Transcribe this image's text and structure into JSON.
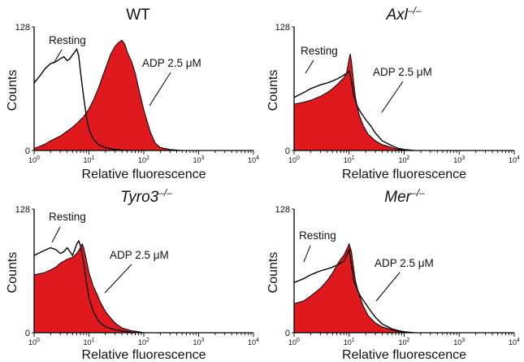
{
  "chart_data": [
    {
      "type": "area",
      "title": "WT",
      "title_italic": false,
      "xlabel": "Relative fluorescence",
      "ylabel": "Counts",
      "x_scale": "log",
      "xlim": [
        1,
        10000
      ],
      "ylim": [
        0,
        128
      ],
      "x_ticks": [
        {
          "value": 1,
          "label": "10",
          "exp": "0"
        },
        {
          "value": 10,
          "label": "10",
          "exp": "1"
        },
        {
          "value": 100,
          "label": "10",
          "exp": "2"
        },
        {
          "value": 1000,
          "label": "10",
          "exp": "3"
        },
        {
          "value": 10000,
          "label": "10",
          "exp": "4"
        }
      ],
      "y_ticks": [
        {
          "value": 0,
          "label": "0"
        },
        {
          "value": 128,
          "label": "128"
        }
      ],
      "annotations": [
        {
          "text": "Resting",
          "series": "Resting"
        },
        {
          "text": "ADP 2.5 μM",
          "series": "ADP 2.5 μM"
        }
      ],
      "series": [
        {
          "name": "Resting",
          "style": "line",
          "color": "#000000",
          "x": [
            1,
            1.3,
            1.6,
            2,
            2.5,
            3,
            3.5,
            4,
            4.5,
            5,
            5.5,
            6,
            6.5,
            7,
            8,
            9,
            10,
            12,
            15,
            20,
            30,
            50
          ],
          "y": [
            70,
            78,
            85,
            90,
            92,
            95,
            97,
            93,
            95,
            99,
            102,
            105,
            98,
            82,
            55,
            35,
            22,
            12,
            6,
            3,
            1,
            0
          ]
        },
        {
          "name": "ADP 2.5 μM",
          "style": "fill",
          "color": "#e0191f",
          "x": [
            1,
            1.5,
            2,
            3,
            4,
            5,
            6,
            8,
            10,
            12,
            15,
            20,
            25,
            30,
            35,
            40,
            45,
            50,
            60,
            70,
            80,
            100,
            130,
            160,
            200,
            300,
            500
          ],
          "y": [
            2,
            6,
            10,
            15,
            20,
            24,
            28,
            35,
            43,
            52,
            65,
            85,
            100,
            108,
            112,
            114,
            110,
            102,
            92,
            80,
            65,
            42,
            20,
            8,
            3,
            1,
            0
          ]
        }
      ]
    },
    {
      "type": "area",
      "title": "Axl",
      "title_superscript": "–/–",
      "title_italic": true,
      "xlabel": "Relative fluorescence",
      "ylabel": "Counts",
      "x_scale": "log",
      "xlim": [
        1,
        10000
      ],
      "ylim": [
        0,
        128
      ],
      "x_ticks": [
        {
          "value": 1,
          "label": "10",
          "exp": "0"
        },
        {
          "value": 10,
          "label": "10",
          "exp": "1"
        },
        {
          "value": 100,
          "label": "10",
          "exp": "2"
        },
        {
          "value": 1000,
          "label": "10",
          "exp": "3"
        },
        {
          "value": 10000,
          "label": "10",
          "exp": "4"
        }
      ],
      "y_ticks": [
        {
          "value": 0,
          "label": "0"
        },
        {
          "value": 128,
          "label": "128"
        }
      ],
      "annotations": [
        {
          "text": "Resting",
          "series": "Resting"
        },
        {
          "text": "ADP 2.5 μM",
          "series": "ADP 2.5 μM"
        }
      ],
      "series": [
        {
          "name": "Resting",
          "style": "line",
          "color": "#000000",
          "x": [
            1,
            1.5,
            2,
            3,
            4,
            5,
            6,
            7,
            8,
            9,
            10,
            11,
            12,
            14,
            16,
            20,
            25,
            30,
            40,
            60,
            80,
            100,
            150
          ],
          "y": [
            55,
            60,
            64,
            68,
            70,
            72,
            74,
            76,
            78,
            80,
            82,
            72,
            58,
            46,
            40,
            32,
            25,
            18,
            10,
            5,
            2,
            1,
            0
          ]
        },
        {
          "name": "ADP 2.5 μM",
          "style": "fill",
          "color": "#e0191f",
          "x": [
            1,
            1.5,
            2,
            3,
            4,
            5,
            6,
            7,
            8,
            9,
            10,
            10.5,
            11,
            12,
            13,
            15,
            18,
            22,
            30,
            40,
            60,
            80,
            100,
            150
          ],
          "y": [
            48,
            50,
            52,
            56,
            60,
            64,
            68,
            72,
            75,
            80,
            95,
            100,
            92,
            72,
            55,
            38,
            26,
            17,
            10,
            6,
            3,
            1,
            0,
            0
          ]
        }
      ]
    },
    {
      "type": "area",
      "title": "Tyro3",
      "title_superscript": "–/–",
      "title_italic": true,
      "xlabel": "Relative fluorescence",
      "ylabel": "Counts",
      "x_scale": "log",
      "xlim": [
        1,
        10000
      ],
      "ylim": [
        0,
        128
      ],
      "x_ticks": [
        {
          "value": 1,
          "label": "10",
          "exp": "0"
        },
        {
          "value": 10,
          "label": "10",
          "exp": "1"
        },
        {
          "value": 100,
          "label": "10",
          "exp": "2"
        },
        {
          "value": 1000,
          "label": "10",
          "exp": "3"
        },
        {
          "value": 10000,
          "label": "10",
          "exp": "4"
        }
      ],
      "y_ticks": [
        {
          "value": 0,
          "label": "0"
        },
        {
          "value": 128,
          "label": "128"
        }
      ],
      "annotations": [
        {
          "text": "Resting",
          "series": "Resting"
        },
        {
          "text": "ADP 2.5 μM",
          "series": "ADP 2.5 μM"
        }
      ],
      "series": [
        {
          "name": "Resting",
          "style": "line",
          "color": "#000000",
          "x": [
            1,
            1.5,
            2,
            2.5,
            3,
            3.5,
            4,
            4.5,
            5,
            5.5,
            6,
            6.5,
            7,
            8,
            9,
            10,
            12,
            15,
            20,
            30,
            50,
            70
          ],
          "y": [
            80,
            85,
            88,
            86,
            82,
            84,
            88,
            84,
            80,
            86,
            92,
            95,
            90,
            72,
            52,
            36,
            22,
            12,
            6,
            3,
            1,
            0
          ]
        },
        {
          "name": "ADP 2.5 μM",
          "style": "fill",
          "color": "#e0191f",
          "x": [
            1,
            1.5,
            2,
            2.5,
            3,
            4,
            5,
            6,
            7,
            7.5,
            8,
            9,
            10,
            11,
            12,
            14,
            16,
            20,
            25,
            30,
            40,
            60,
            80,
            100
          ],
          "y": [
            60,
            62,
            65,
            68,
            72,
            76,
            78,
            82,
            88,
            92,
            88,
            75,
            62,
            55,
            48,
            40,
            32,
            22,
            15,
            10,
            5,
            2,
            1,
            0
          ]
        }
      ]
    },
    {
      "type": "area",
      "title": "Mer",
      "title_superscript": "–/–",
      "title_italic": true,
      "xlabel": "Relative fluorescence",
      "ylabel": "Counts",
      "x_scale": "log",
      "xlim": [
        1,
        10000
      ],
      "ylim": [
        0,
        128
      ],
      "x_ticks": [
        {
          "value": 1,
          "label": "10",
          "exp": "0"
        },
        {
          "value": 10,
          "label": "10",
          "exp": "1"
        },
        {
          "value": 100,
          "label": "10",
          "exp": "2"
        },
        {
          "value": 1000,
          "label": "10",
          "exp": "3"
        },
        {
          "value": 10000,
          "label": "10",
          "exp": "4"
        }
      ],
      "y_ticks": [
        {
          "value": 0,
          "label": "0"
        },
        {
          "value": 128,
          "label": "128"
        }
      ],
      "annotations": [
        {
          "text": "Resting",
          "series": "Resting"
        },
        {
          "text": "ADP 2.5 μM",
          "series": "ADP 2.5 μM"
        }
      ],
      "series": [
        {
          "name": "Resting",
          "style": "line",
          "color": "#000000",
          "x": [
            1,
            1.5,
            2,
            3,
            4,
            5,
            6,
            7,
            8,
            9,
            10,
            11,
            12,
            14,
            16,
            20,
            25,
            30,
            40,
            60,
            80,
            100,
            150
          ],
          "y": [
            52,
            56,
            60,
            64,
            66,
            68,
            70,
            72,
            74,
            80,
            86,
            70,
            55,
            45,
            38,
            30,
            22,
            16,
            9,
            4,
            2,
            1,
            0
          ]
        },
        {
          "name": "ADP 2.5 μM",
          "style": "fill",
          "color": "#e0191f",
          "x": [
            1,
            1.5,
            2,
            3,
            4,
            5,
            6,
            7,
            8,
            9,
            10,
            11,
            12,
            13,
            15,
            18,
            22,
            30,
            40,
            60,
            80,
            100,
            150
          ],
          "y": [
            30,
            33,
            38,
            46,
            54,
            62,
            70,
            76,
            80,
            86,
            92,
            84,
            68,
            54,
            40,
            28,
            18,
            10,
            6,
            3,
            1,
            0,
            0
          ]
        }
      ]
    }
  ]
}
